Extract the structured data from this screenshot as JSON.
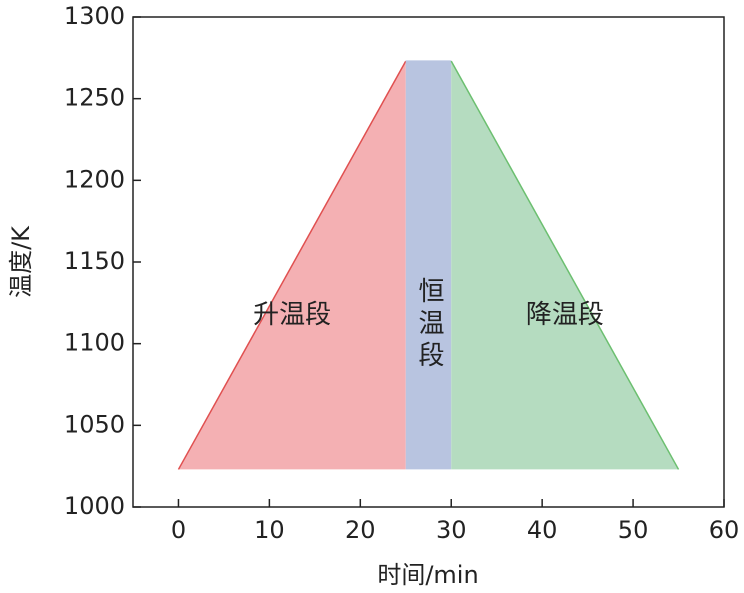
{
  "chart_data": {
    "type": "area",
    "x_label": "时间/min",
    "y_label": "温度/K",
    "series": [
      {
        "name": "升温段",
        "color": "#f4b0b3",
        "line_color": "#e05050",
        "x": [
          0,
          25
        ],
        "values": [
          1023,
          1273
        ]
      },
      {
        "name": "恒温段",
        "color": "#b8c4e0",
        "line_color": "#b8c4e0",
        "x": [
          25,
          30
        ],
        "values": [
          1273,
          1273
        ]
      },
      {
        "name": "降温段",
        "color": "#b5dcc0",
        "line_color": "#6cbf70",
        "x": [
          30,
          55
        ],
        "values": [
          1273,
          1023
        ]
      }
    ],
    "xlim": [
      -5,
      60
    ],
    "xticks": [
      0,
      10,
      20,
      30,
      40,
      50,
      60
    ],
    "ylim": [
      1000,
      1300
    ],
    "yticks": [
      1000,
      1050,
      1100,
      1150,
      1200,
      1250,
      1300
    ]
  }
}
